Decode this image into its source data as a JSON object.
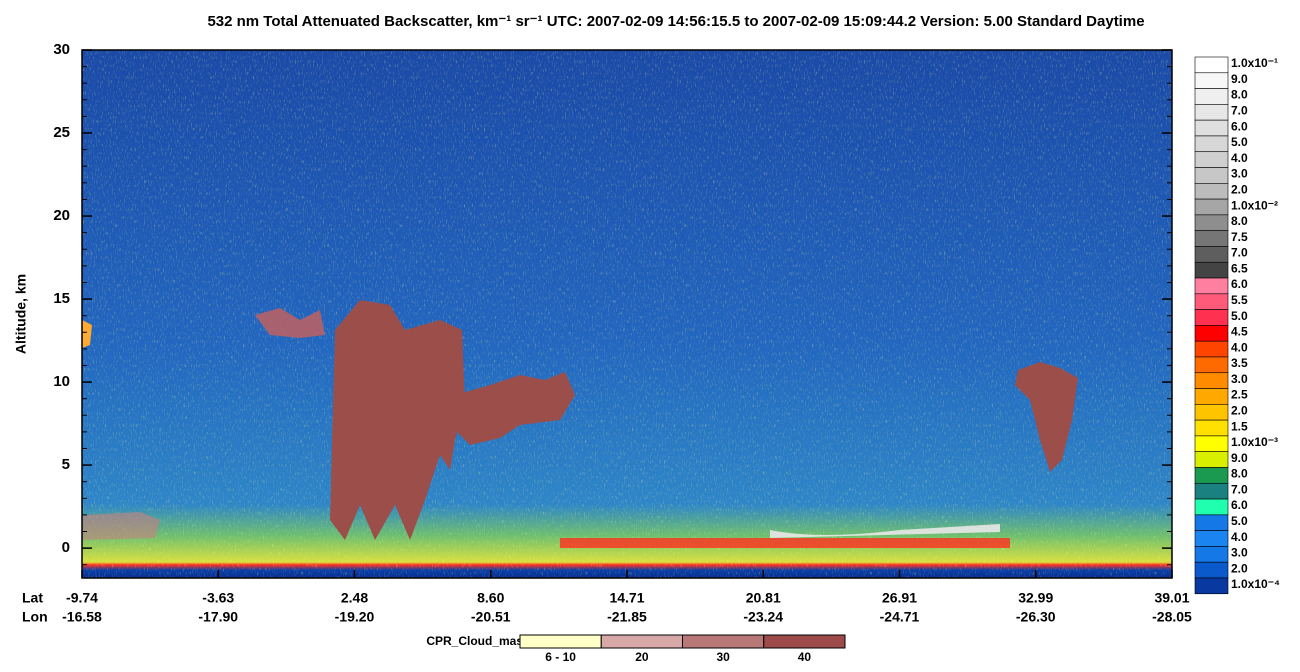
{
  "chart_data": {
    "type": "heatmap",
    "title": "532 nm Total Attenuated Backscatter, km⁻¹ sr⁻¹",
    "subtitle": "UTC:  2007-02-09 14:56:15.5  to  2007-02-09 15:09:44.2",
    "version": "Version: 5.00  Standard  Daytime",
    "ylabel": "Altitude, km",
    "ylim": [
      -1.8,
      30
    ],
    "yticks": [
      0,
      5,
      10,
      15,
      20,
      25,
      30
    ],
    "lat_label": "Lat",
    "lon_label": "Lon",
    "lat": [
      "-9.74",
      "-3.63",
      "2.48",
      "8.60",
      "14.71",
      "20.81",
      "26.91",
      "32.99",
      "39.01"
    ],
    "lon": [
      "-16.58",
      "-17.90",
      "-19.20",
      "-20.51",
      "-21.85",
      "-23.24",
      "-24.71",
      "-26.30",
      "-28.05"
    ],
    "colorbar": {
      "labels": [
        "1.0x10⁻¹",
        "9.0",
        "8.0",
        "7.0",
        "6.0",
        "5.0",
        "4.0",
        "3.0",
        "2.0",
        "1.0x10⁻²",
        "8.0",
        "7.5",
        "7.0",
        "6.5",
        "6.0",
        "5.5",
        "5.0",
        "4.5",
        "4.0",
        "3.5",
        "3.0",
        "2.5",
        "2.0",
        "1.5",
        "1.0x10⁻³",
        "9.0",
        "8.0",
        "7.0",
        "6.0",
        "5.0",
        "4.0",
        "3.0",
        "2.0",
        "1.0x10⁻⁴"
      ],
      "colors": [
        "#ffffff",
        "#f7f7f7",
        "#efefef",
        "#e7e7e7",
        "#dfdfdf",
        "#d7d7d7",
        "#cfcfcf",
        "#c7c7c7",
        "#bcbcbc",
        "#a6a6a6",
        "#8e8e8e",
        "#767676",
        "#5e5e5e",
        "#444444",
        "#ff7fa0",
        "#ff5a7a",
        "#ff3050",
        "#ff0000",
        "#ff4400",
        "#ff6a00",
        "#ff8c00",
        "#ffa800",
        "#ffc400",
        "#ffe000",
        "#ffff00",
        "#d8f000",
        "#1a9a50",
        "#1a8080",
        "#20ffb0",
        "#1478e6",
        "#1a84f0",
        "#1478e6",
        "#0a5acc",
        "#0838a0",
        "#062a8a"
      ]
    },
    "cpr_label": "CPR_Cloud_mask",
    "cpr_categories": [
      "6 - 10",
      "20",
      "30",
      "40"
    ],
    "cpr_colors": [
      "#ffffc8",
      "#d8a8a8",
      "#b87878",
      "#9c4a4a"
    ]
  }
}
